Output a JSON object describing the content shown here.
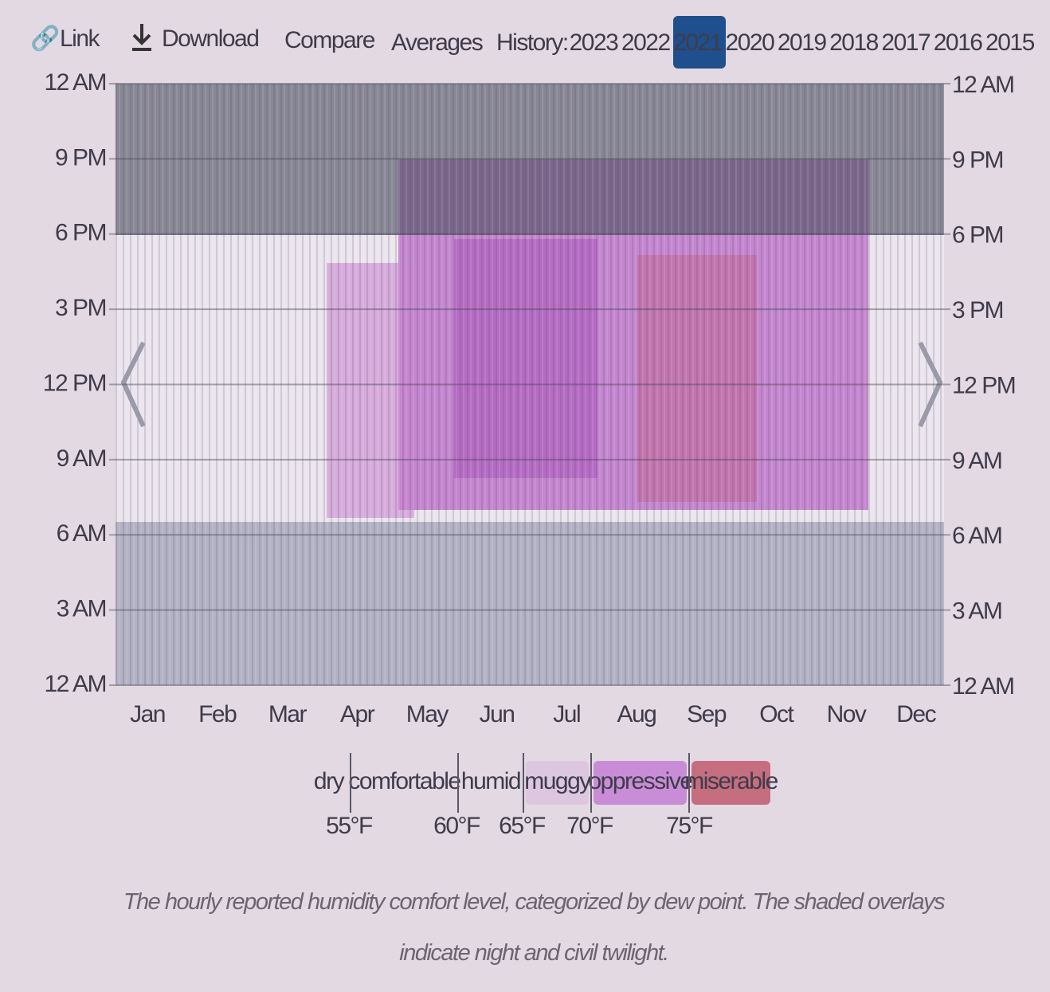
{
  "toolbar": {
    "link": "Link",
    "download": "Download",
    "compare": "Compare",
    "averages": "Averages",
    "history_label": "History:",
    "years": [
      "2023",
      "2022",
      "2021",
      "2020",
      "2019",
      "2018",
      "2017",
      "2016",
      "2015"
    ],
    "selected_year": "2021"
  },
  "chart": {
    "y_labels": [
      "12 AM",
      "9 PM",
      "6 PM",
      "3 PM",
      "12 PM",
      "9 AM",
      "6 AM",
      "3 AM",
      "12 AM"
    ],
    "months": [
      "Jan",
      "Feb",
      "Mar",
      "Apr",
      "May",
      "Jun",
      "Jul",
      "Aug",
      "Sep",
      "Oct",
      "Nov",
      "Dec"
    ],
    "legend": [
      "dry",
      "comfortable",
      "humid",
      "muggy",
      "oppressive",
      "miserable"
    ],
    "thresholds": [
      "55°F",
      "60°F",
      "65°F",
      "70°F",
      "75°F"
    ]
  },
  "caption": "The hourly reported humidity comfort level, categorized by dew point. The shaded overlays indicate night and civil twilight."
}
